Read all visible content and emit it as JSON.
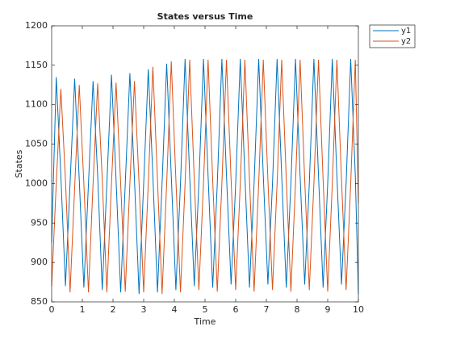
{
  "chart_data": {
    "type": "line",
    "title": "States versus Time",
    "xlabel": "Time",
    "ylabel": "States",
    "x": [
      0,
      0.15,
      0.3,
      0.45,
      0.6,
      0.75,
      0.9,
      1.05,
      1.2,
      1.35,
      1.5,
      1.65,
      1.8,
      1.95,
      2.1,
      2.25,
      2.4,
      2.55,
      2.7,
      2.85,
      3.0,
      3.15,
      3.3,
      3.45,
      3.6,
      3.75,
      3.9,
      4.05,
      4.2,
      4.35,
      4.5,
      4.65,
      4.8,
      4.95,
      5.1,
      5.25,
      5.4,
      5.55,
      5.7,
      5.85,
      6.0,
      6.15,
      6.3,
      6.45,
      6.6,
      6.75,
      6.9,
      7.05,
      7.2,
      7.35,
      7.5,
      7.65,
      7.8,
      7.95,
      8.1,
      8.25,
      8.4,
      8.55,
      8.7,
      8.85,
      9.0,
      9.15,
      9.3,
      9.45,
      9.6,
      9.75,
      9.9,
      10
    ],
    "series": [
      {
        "name": "y1",
        "color": "#0072BD",
        "values": [
          925,
          1135,
          1010,
          870,
          1000,
          1133,
          1005,
          868,
          1000,
          1130,
          1010,
          865,
          1000,
          1138,
          1005,
          862,
          1000,
          1140,
          1005,
          860,
          1000,
          1145,
          1010,
          862,
          1000,
          1152,
          1010,
          865,
          1000,
          1158,
          1010,
          870,
          1000,
          1158,
          1010,
          868,
          1000,
          1158,
          1010,
          872,
          1000,
          1158,
          1010,
          868,
          1000,
          1158,
          1010,
          872,
          1000,
          1158,
          1010,
          868,
          1000,
          1158,
          1010,
          872,
          1000,
          1158,
          1010,
          868,
          1000,
          1158,
          1010,
          872,
          1000,
          1158,
          1010,
          860
        ]
      },
      {
        "name": "y2",
        "color": "#D95319",
        "values": [
          870,
          1000,
          1120,
          1005,
          862,
          995,
          1125,
          1000,
          862,
          1000,
          1127,
          1005,
          862,
          1000,
          1128,
          1000,
          863,
          1000,
          1130,
          1000,
          862,
          1000,
          1148,
          1005,
          860,
          1000,
          1155,
          1005,
          862,
          1000,
          1157,
          1005,
          865,
          1000,
          1157,
          1005,
          863,
          1000,
          1157,
          1005,
          865,
          1000,
          1157,
          1005,
          863,
          1000,
          1157,
          1005,
          865,
          1000,
          1157,
          1005,
          863,
          1000,
          1157,
          1005,
          865,
          1000,
          1157,
          1005,
          863,
          1000,
          1157,
          1005,
          865,
          1000,
          1157,
          975
        ]
      }
    ],
    "xlim": [
      0,
      10
    ],
    "xticks": [
      0,
      1,
      2,
      3,
      4,
      5,
      6,
      7,
      8,
      9,
      10
    ],
    "ylim": [
      850,
      1200
    ],
    "yticks": [
      850,
      900,
      950,
      1000,
      1050,
      1100,
      1150,
      1200
    ],
    "legend": "outside-top-right"
  }
}
